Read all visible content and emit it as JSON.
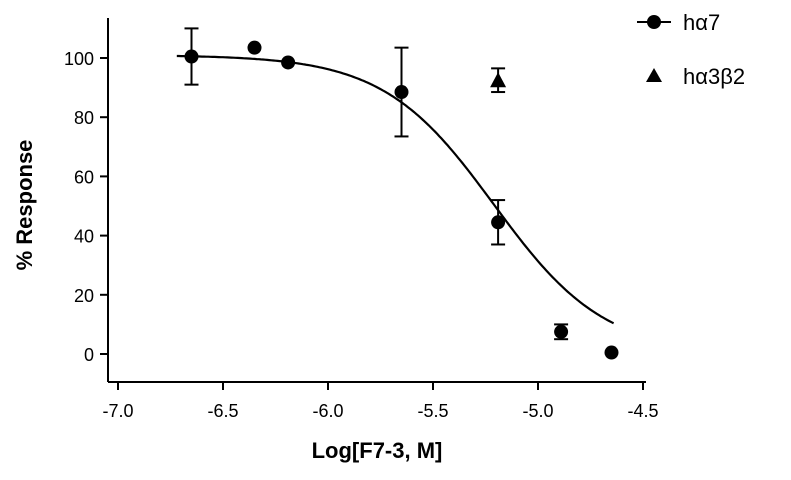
{
  "chart_data": {
    "type": "scatter",
    "xlabel": "Log[F7-3, M]",
    "ylabel": "% Response",
    "xlim": [
      -7.0,
      -4.5
    ],
    "ylim": [
      -10,
      110
    ],
    "x_ticks": [
      -7.0,
      -6.5,
      -6.0,
      -5.5,
      -5.0,
      -4.5
    ],
    "x_tick_labels": [
      "-7.0",
      "-6.5",
      "-6.0",
      "-5.5",
      "-5.0",
      "-4.5"
    ],
    "y_ticks": [
      0,
      20,
      40,
      60,
      80,
      100
    ],
    "y_tick_labels": [
      "0",
      "20",
      "40",
      "60",
      "80",
      "100"
    ],
    "legend_position": "top-right",
    "series": [
      {
        "name": "hα7",
        "marker": "circle",
        "points": [
          {
            "x": -6.65,
            "y": 100.5,
            "err": 9.5
          },
          {
            "x": -6.35,
            "y": 103.5,
            "err": 0
          },
          {
            "x": -6.19,
            "y": 98.5,
            "err": 0
          },
          {
            "x": -5.65,
            "y": 88.5,
            "err": 15
          },
          {
            "x": -5.19,
            "y": 44.5,
            "err": 7.5
          },
          {
            "x": -4.89,
            "y": 7.5,
            "err": 2.5
          },
          {
            "x": -4.65,
            "y": 0.5,
            "err": 0
          }
        ],
        "fit": {
          "top": 101,
          "bottom": 0,
          "log_ic50": -5.21,
          "hill": -1.65
        }
      },
      {
        "name": "hα3β2",
        "marker": "triangle",
        "points": [
          {
            "x": -5.19,
            "y": 92.5,
            "err": 4
          }
        ]
      }
    ]
  }
}
